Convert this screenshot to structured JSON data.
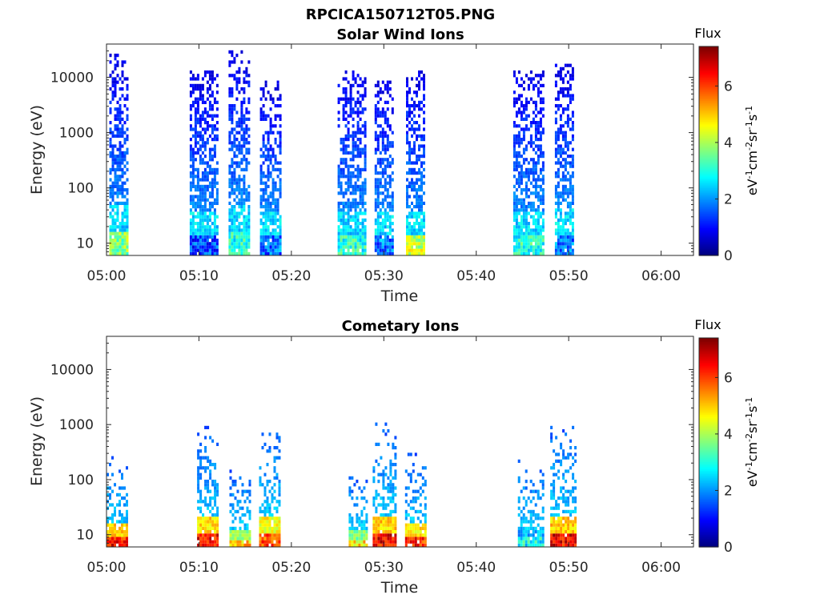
{
  "figure": {
    "title": "RPCICA150712T05.PNG"
  },
  "colorbar": {
    "title": "Flux",
    "label": "eV-1cm-2sr-1s-1",
    "ticks": [
      "0",
      "2",
      "4",
      "6"
    ],
    "range": [
      0,
      7.4
    ],
    "colormap": "jet"
  },
  "chart_data": [
    {
      "type": "heatmap",
      "title": "Solar Wind Ions",
      "xlabel": "Time",
      "ylabel": "Energy (eV)",
      "x_tick_labels": [
        "05:00",
        "05:10",
        "05:20",
        "05:30",
        "05:40",
        "05:50",
        "06:00"
      ],
      "y_tick_labels": [
        "10",
        "100",
        "1000",
        "10000"
      ],
      "xlim": [
        "05:00",
        "06:03"
      ],
      "ylim": [
        6,
        40000
      ],
      "y_scale": "log",
      "x_units": "minutes after 05:00",
      "value_label": "log flux",
      "bursts": [
        {
          "t0": 0.3,
          "t1": 2.3,
          "e_lo": 6,
          "e_hi": 30000,
          "peak_low_energy": 4.6
        },
        {
          "t0": 9.0,
          "t1": 12.0,
          "e_lo": 300,
          "e_hi": 15000,
          "peak_low_energy": 2.2
        },
        {
          "t0": 13.2,
          "t1": 15.3,
          "e_lo": 6,
          "e_hi": 35000,
          "peak_low_energy": 3.8
        },
        {
          "t0": 16.6,
          "t1": 18.8,
          "e_lo": 300,
          "e_hi": 9000,
          "peak_low_energy": 2.5
        },
        {
          "t0": 25.0,
          "t1": 28.0,
          "e_lo": 6,
          "e_hi": 15000,
          "peak_low_energy": 3.8
        },
        {
          "t0": 29.0,
          "t1": 31.0,
          "e_lo": 400,
          "e_hi": 9000,
          "peak_low_energy": 2.6
        },
        {
          "t0": 32.4,
          "t1": 34.3,
          "e_lo": 6,
          "e_hi": 15000,
          "peak_low_energy": 5.0
        },
        {
          "t0": 44.0,
          "t1": 47.3,
          "e_lo": 6,
          "e_hi": 15000,
          "peak_low_energy": 3.8
        },
        {
          "t0": 48.5,
          "t1": 50.5,
          "e_lo": 400,
          "e_hi": 18000,
          "peak_low_energy": 2.6
        }
      ]
    },
    {
      "type": "heatmap",
      "title": "Cometary Ions",
      "xlabel": "Time",
      "ylabel": "Energy (eV)",
      "x_tick_labels": [
        "05:00",
        "05:10",
        "05:20",
        "05:30",
        "05:40",
        "05:50",
        "06:00"
      ],
      "y_tick_labels": [
        "10",
        "100",
        "1000",
        "10000"
      ],
      "xlim": [
        "05:00",
        "06:03"
      ],
      "ylim": [
        6,
        40000
      ],
      "y_scale": "log",
      "x_units": "minutes after 05:00",
      "value_label": "log flux",
      "bursts": [
        {
          "t0": 0.0,
          "t1": 2.3,
          "e_lo": 6,
          "e_hi": 320,
          "peak_low_energy": 7.2
        },
        {
          "t0": 9.8,
          "t1": 12.0,
          "e_lo": 6,
          "e_hi": 950,
          "peak_low_energy": 7.2
        },
        {
          "t0": 13.3,
          "t1": 15.5,
          "e_lo": 6,
          "e_hi": 160,
          "peak_low_energy": 5.8
        },
        {
          "t0": 16.5,
          "t1": 18.8,
          "e_lo": 6,
          "e_hi": 1100,
          "peak_low_energy": 6.8
        },
        {
          "t0": 26.2,
          "t1": 28.2,
          "e_lo": 6,
          "e_hi": 150,
          "peak_low_energy": 5.6
        },
        {
          "t0": 28.8,
          "t1": 31.2,
          "e_lo": 6,
          "e_hi": 1100,
          "peak_low_energy": 7.3
        },
        {
          "t0": 32.3,
          "t1": 34.5,
          "e_lo": 6,
          "e_hi": 350,
          "peak_low_energy": 7.0
        },
        {
          "t0": 44.5,
          "t1": 47.3,
          "e_lo": 6,
          "e_hi": 250,
          "peak_low_energy": 3.6
        },
        {
          "t0": 48.0,
          "t1": 50.8,
          "e_lo": 6,
          "e_hi": 1200,
          "peak_low_energy": 7.3
        }
      ]
    }
  ]
}
